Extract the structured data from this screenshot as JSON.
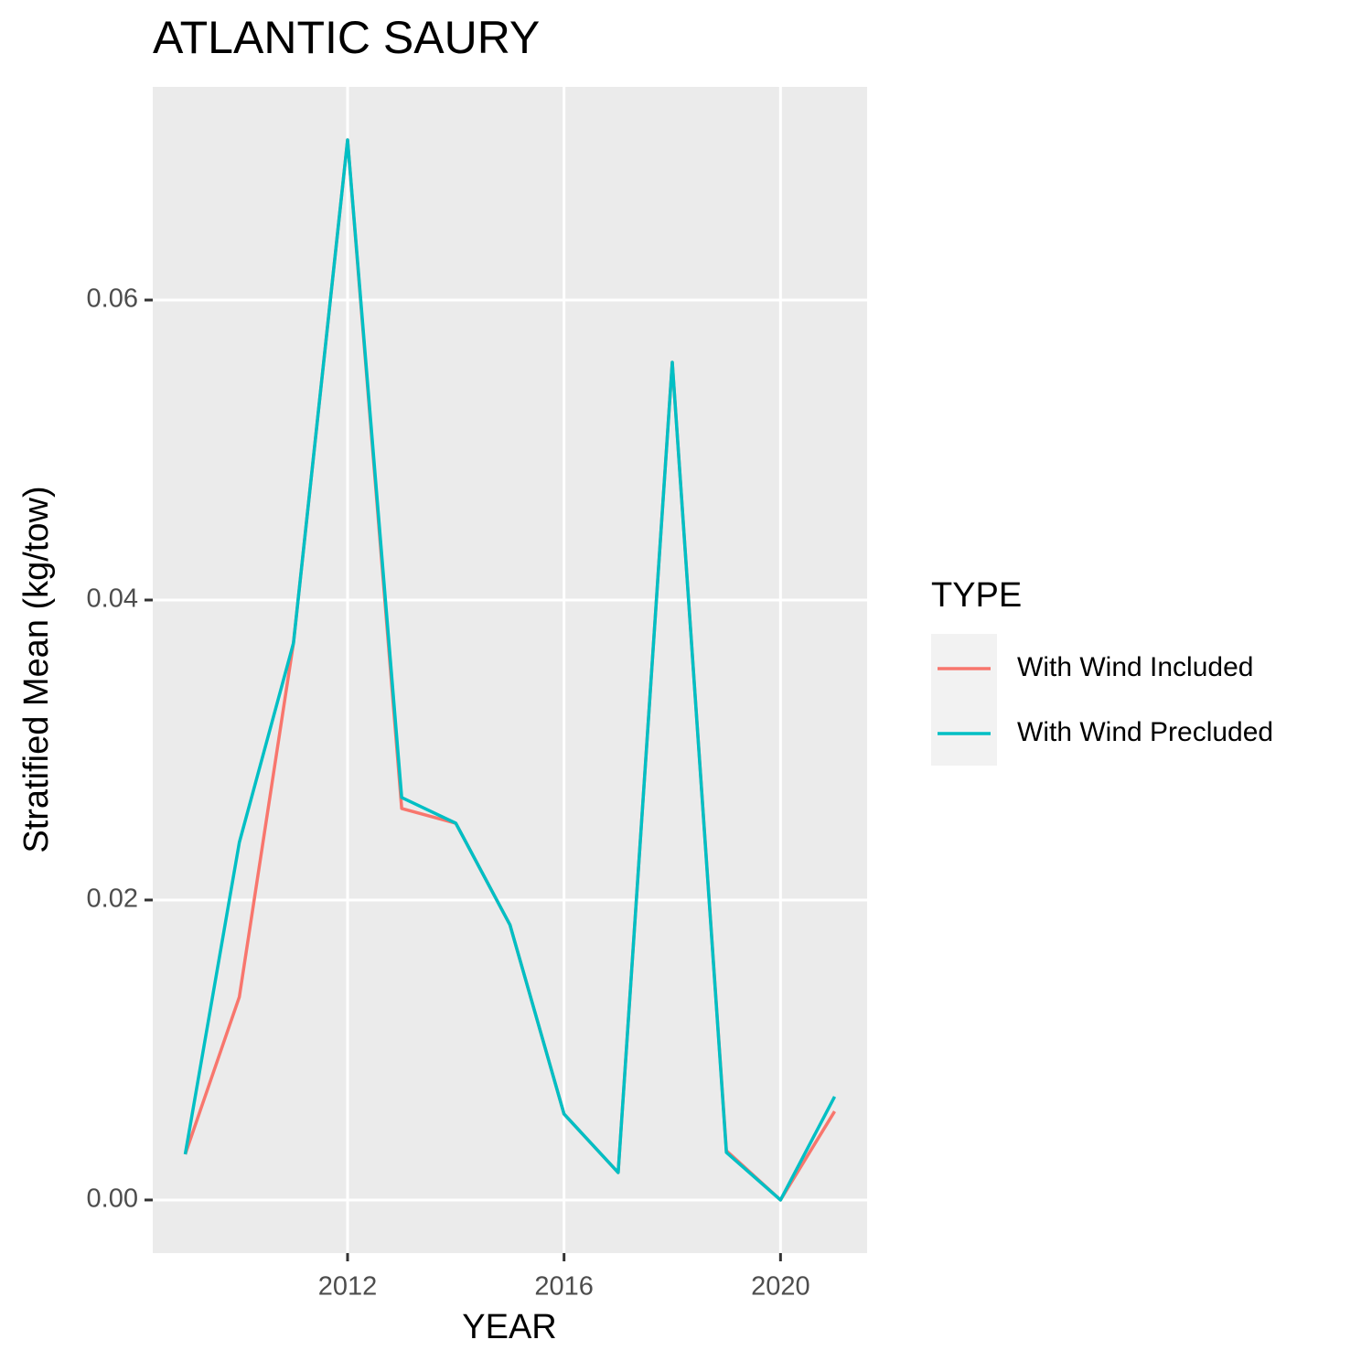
{
  "chart_data": {
    "type": "line",
    "title": "ATLANTIC SAURY",
    "x_label": "YEAR",
    "y_label": "Stratified Mean (kg/tow)",
    "legend_title": "TYPE",
    "legend_position": "right",
    "x": [
      2009,
      2010,
      2011,
      2012,
      2013,
      2014,
      2015,
      2016,
      2017,
      2018,
      2019,
      2020,
      2021
    ],
    "series": [
      {
        "name": "With Wind Included",
        "color": "#F8766D",
        "values": [
          0.00305,
          0.01354,
          0.03713,
          0.07067,
          0.0261,
          0.02512,
          0.01835,
          0.00573,
          0.00183,
          0.05585,
          0.00329,
          0,
          0.00591
        ]
      },
      {
        "name": "With Wind Precluded",
        "color": "#00BFC4",
        "values": [
          0.00305,
          0.02384,
          0.03713,
          0.07067,
          0.02683,
          0.02512,
          0.01835,
          0.00573,
          0.00183,
          0.05585,
          0.00317,
          0,
          0.00689
        ]
      }
    ],
    "xlim": [
      2008.4,
      2021.6
    ],
    "xticks": [
      2012,
      2016,
      2020
    ],
    "ylim": [
      -0.00354,
      0.07421
    ],
    "yticks": [
      {
        "value": 0,
        "label": "0.00"
      },
      {
        "value": 0.02,
        "label": "0.02"
      },
      {
        "value": 0.04,
        "label": "0.04"
      },
      {
        "value": 0.06,
        "label": "0.06"
      }
    ],
    "grid": true
  }
}
